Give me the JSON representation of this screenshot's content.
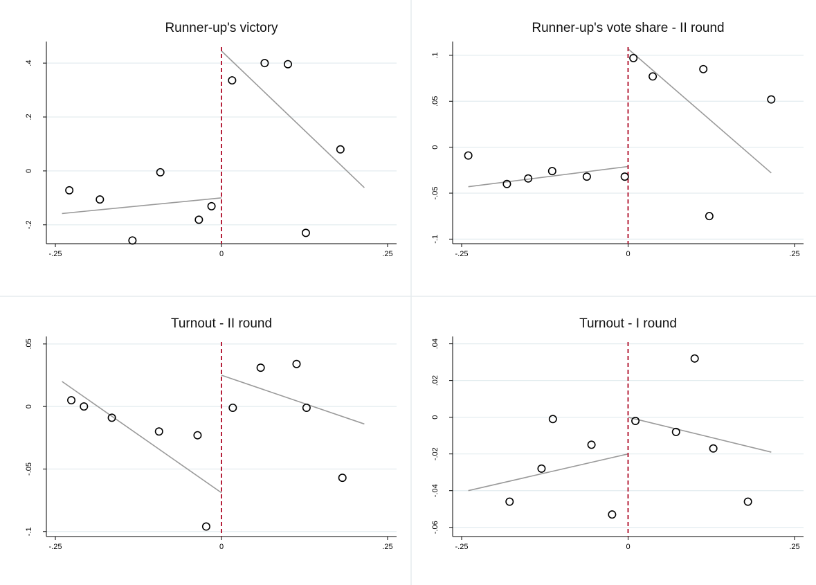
{
  "chart_data": [
    {
      "type": "scatter",
      "title": "Runner-up's victory",
      "xlabel": "",
      "ylabel": "",
      "xlim": [
        -0.25,
        0.25
      ],
      "xticks": [
        {
          "value": -0.25,
          "label": "-.25"
        },
        {
          "value": 0,
          "label": "0"
        },
        {
          "value": 0.25,
          "label": ".25"
        }
      ],
      "ylim": [
        -0.27,
        0.48
      ],
      "yticks": [
        {
          "value": -0.2,
          "label": "-.2"
        },
        {
          "value": 0,
          "label": "0"
        },
        {
          "value": 0.2,
          "label": ".2"
        },
        {
          "value": 0.4,
          "label": ".4"
        }
      ],
      "grid": true,
      "cutoff": 0,
      "points": [
        {
          "x": -0.229,
          "y": -0.072
        },
        {
          "x": -0.183,
          "y": -0.106
        },
        {
          "x": -0.134,
          "y": -0.258
        },
        {
          "x": -0.092,
          "y": -0.005
        },
        {
          "x": -0.034,
          "y": -0.181
        },
        {
          "x": -0.015,
          "y": -0.131
        },
        {
          "x": 0.016,
          "y": 0.336
        },
        {
          "x": 0.065,
          "y": 0.4
        },
        {
          "x": 0.1,
          "y": 0.396
        },
        {
          "x": 0.127,
          "y": -0.23
        },
        {
          "x": 0.179,
          "y": 0.08
        }
      ],
      "fit_lines": [
        {
          "x": [
            -0.24,
            0
          ],
          "y": [
            -0.158,
            -0.1
          ]
        },
        {
          "x": [
            0,
            0.215
          ],
          "y": [
            0.445,
            -0.062
          ]
        }
      ]
    },
    {
      "type": "scatter",
      "title": "Runner-up's vote share - II round",
      "xlabel": "",
      "ylabel": "",
      "xlim": [
        -0.25,
        0.25
      ],
      "xticks": [
        {
          "value": -0.25,
          "label": "-.25"
        },
        {
          "value": 0,
          "label": "0"
        },
        {
          "value": 0.25,
          "label": ".25"
        }
      ],
      "ylim": [
        -0.105,
        0.115
      ],
      "yticks": [
        {
          "value": -0.1,
          "label": "-.1"
        },
        {
          "value": -0.05,
          "label": "-.05"
        },
        {
          "value": 0,
          "label": "0"
        },
        {
          "value": 0.05,
          "label": ".05"
        },
        {
          "value": 0.1,
          "label": ".1"
        }
      ],
      "grid": true,
      "cutoff": 0,
      "points": [
        {
          "x": -0.24,
          "y": -0.009
        },
        {
          "x": -0.182,
          "y": -0.04
        },
        {
          "x": -0.15,
          "y": -0.034
        },
        {
          "x": -0.114,
          "y": -0.026
        },
        {
          "x": -0.062,
          "y": -0.032
        },
        {
          "x": -0.005,
          "y": -0.032
        },
        {
          "x": 0.008,
          "y": 0.097
        },
        {
          "x": 0.037,
          "y": 0.077
        },
        {
          "x": 0.113,
          "y": 0.085
        },
        {
          "x": 0.122,
          "y": -0.075
        },
        {
          "x": 0.215,
          "y": 0.052
        }
      ],
      "fit_lines": [
        {
          "x": [
            -0.24,
            0
          ],
          "y": [
            -0.043,
            -0.021
          ]
        },
        {
          "x": [
            0,
            0.215
          ],
          "y": [
            0.107,
            -0.028
          ]
        }
      ]
    },
    {
      "type": "scatter",
      "title": "Turnout - II round",
      "xlabel": "",
      "ylabel": "",
      "xlim": [
        -0.25,
        0.25
      ],
      "xticks": [
        {
          "value": -0.25,
          "label": "-.25"
        },
        {
          "value": 0,
          "label": "0"
        },
        {
          "value": 0.25,
          "label": ".25"
        }
      ],
      "ylim": [
        -0.104,
        0.056
      ],
      "yticks": [
        {
          "value": -0.1,
          "label": "-.1"
        },
        {
          "value": -0.05,
          "label": "-.05"
        },
        {
          "value": 0,
          "label": "0"
        },
        {
          "value": 0.05,
          "label": ".05"
        }
      ],
      "grid": true,
      "cutoff": 0,
      "points": [
        {
          "x": -0.226,
          "y": 0.005
        },
        {
          "x": -0.207,
          "y": 0.0
        },
        {
          "x": -0.165,
          "y": -0.009
        },
        {
          "x": -0.094,
          "y": -0.02
        },
        {
          "x": -0.036,
          "y": -0.023
        },
        {
          "x": -0.023,
          "y": -0.096
        },
        {
          "x": 0.017,
          "y": -0.001
        },
        {
          "x": 0.059,
          "y": 0.031
        },
        {
          "x": 0.113,
          "y": 0.034
        },
        {
          "x": 0.128,
          "y": -0.001
        },
        {
          "x": 0.182,
          "y": -0.057
        }
      ],
      "fit_lines": [
        {
          "x": [
            -0.24,
            0
          ],
          "y": [
            0.02,
            -0.069
          ]
        },
        {
          "x": [
            0,
            0.215
          ],
          "y": [
            0.025,
            -0.014
          ]
        }
      ]
    },
    {
      "type": "scatter",
      "title": "Turnout - I round",
      "xlabel": "",
      "ylabel": "",
      "xlim": [
        -0.25,
        0.25
      ],
      "xticks": [
        {
          "value": -0.25,
          "label": "-.25"
        },
        {
          "value": 0,
          "label": "0"
        },
        {
          "value": 0.25,
          "label": ".25"
        }
      ],
      "ylim": [
        -0.065,
        0.044
      ],
      "yticks": [
        {
          "value": -0.06,
          "label": "-.06"
        },
        {
          "value": -0.04,
          "label": "-.04"
        },
        {
          "value": -0.02,
          "label": "-.02"
        },
        {
          "value": 0,
          "label": "0"
        },
        {
          "value": 0.02,
          "label": ".02"
        },
        {
          "value": 0.04,
          "label": ".04"
        }
      ],
      "grid": true,
      "cutoff": 0,
      "points": [
        {
          "x": -0.178,
          "y": -0.046
        },
        {
          "x": -0.13,
          "y": -0.028
        },
        {
          "x": -0.113,
          "y": -0.001
        },
        {
          "x": -0.055,
          "y": -0.015
        },
        {
          "x": -0.024,
          "y": -0.053
        },
        {
          "x": 0.011,
          "y": -0.002
        },
        {
          "x": 0.072,
          "y": -0.008
        },
        {
          "x": 0.1,
          "y": 0.032
        },
        {
          "x": 0.128,
          "y": -0.017
        },
        {
          "x": 0.18,
          "y": -0.046
        }
      ],
      "fit_lines": [
        {
          "x": [
            -0.24,
            0
          ],
          "y": [
            -0.04,
            -0.02
          ]
        },
        {
          "x": [
            0,
            0.215
          ],
          "y": [
            0.0,
            -0.019
          ]
        }
      ]
    }
  ]
}
